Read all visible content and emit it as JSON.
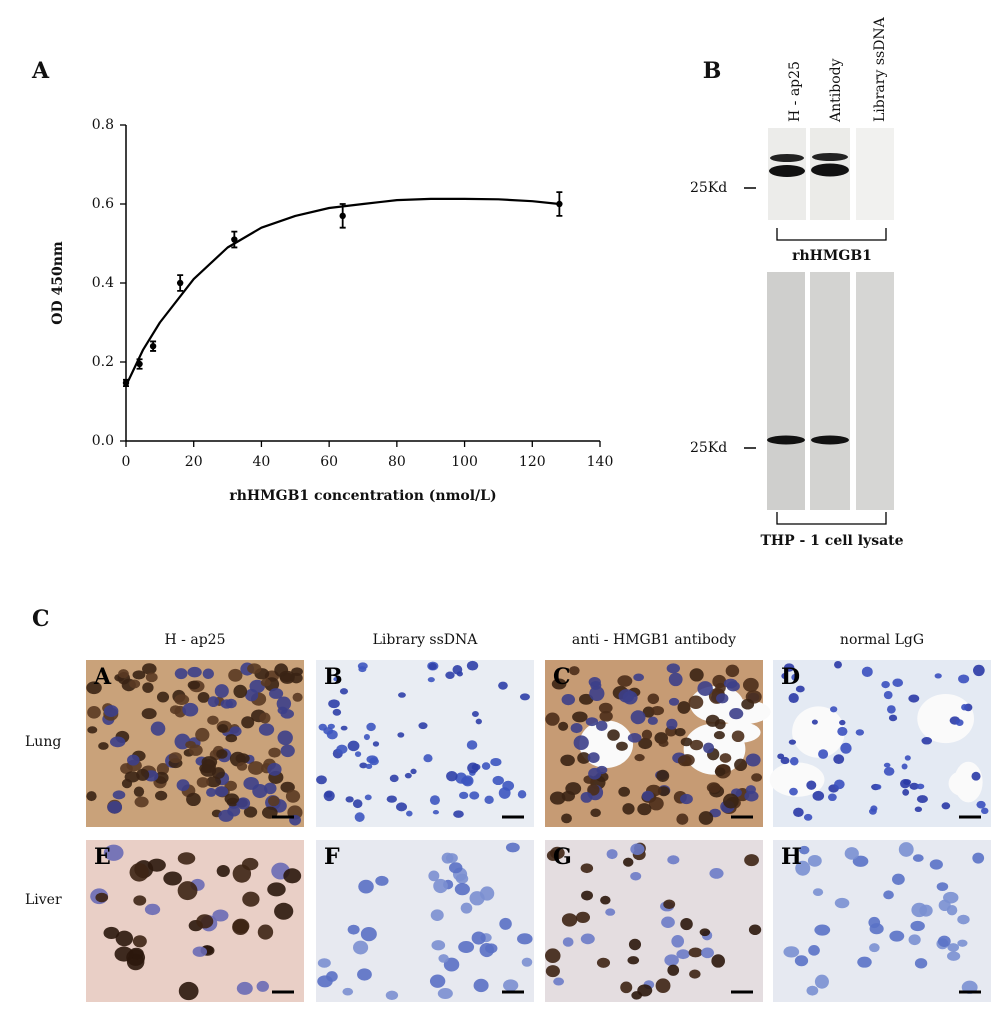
{
  "chart_data": {
    "type": "scatter",
    "panel_label": "A",
    "x_label": "rhHMGB1 concentration (nmol/L)",
    "y_label": "OD 450nm",
    "x": [
      0,
      4,
      8,
      16,
      32,
      64,
      128
    ],
    "values": [
      0.147,
      0.195,
      0.24,
      0.4,
      0.51,
      0.57,
      0.6
    ],
    "errors": [
      0.008,
      0.012,
      0.012,
      0.02,
      0.02,
      0.03,
      0.03
    ],
    "fit": {
      "x": [
        0,
        5,
        10,
        20,
        30,
        40,
        50,
        60,
        70,
        80,
        90,
        100,
        110,
        120,
        128
      ],
      "values": [
        0.14,
        0.23,
        0.3,
        0.41,
        0.49,
        0.54,
        0.57,
        0.59,
        0.6,
        0.61,
        0.613,
        0.613,
        0.612,
        0.607,
        0.6
      ]
    },
    "color": "#000000",
    "xlim": [
      0,
      140
    ],
    "ylim": [
      0,
      0.8
    ],
    "xticks": [
      0,
      20,
      40,
      60,
      80,
      100,
      120,
      140
    ],
    "yticks": [
      {
        "value": 0,
        "label": "0.0"
      },
      0.2,
      0.4,
      0.6,
      0.8
    ]
  },
  "panel_b": {
    "label": "B",
    "lanes": [
      "H - ap25",
      "Antibody",
      "Library ssDNA"
    ],
    "marker_top": "25Kd",
    "caption_top": "rhHMGB1",
    "marker_bottom": "25Kd",
    "caption_bottom": "THP - 1 cell lysate"
  },
  "panel_c": {
    "label": "C",
    "columns": [
      "H - ap25",
      "Library ssDNA",
      "anti - HMGB1 antibody",
      "normal LgG"
    ],
    "rows": [
      "Lung",
      "Liver"
    ],
    "images": [
      "A",
      "B",
      "C",
      "D",
      "E",
      "F",
      "G",
      "H"
    ]
  }
}
